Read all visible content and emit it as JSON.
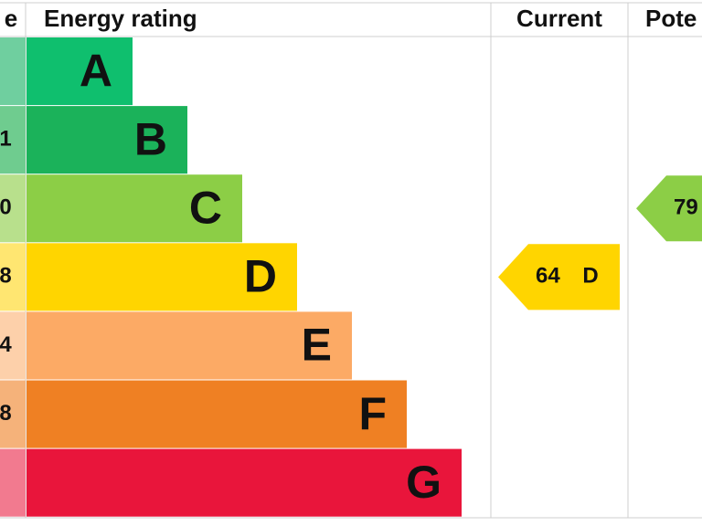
{
  "header": {
    "score": "e",
    "rating": "Energy rating",
    "current": "Current",
    "potential": "Pote"
  },
  "bands": [
    {
      "letter": "A",
      "color": "#0fbf6e",
      "score_color": "#6fcf9f"
    },
    {
      "letter": "B",
      "score": "1",
      "color": "#1bb25a",
      "score_color": "#6fcc8f"
    },
    {
      "letter": "C",
      "score": "0",
      "color": "#8cce46",
      "score_color": "#b8e08c"
    },
    {
      "letter": "D",
      "score": "8",
      "color": "#ffd500",
      "score_color": "#ffe671"
    },
    {
      "letter": "E",
      "score": "4",
      "color": "#fcaa65",
      "score_color": "#fdd0aa"
    },
    {
      "letter": "F",
      "score": "8",
      "color": "#ef8023",
      "score_color": "#f5b27a"
    },
    {
      "letter": "G",
      "color": "#e9153b",
      "score_color": "#f27a8f"
    }
  ],
  "current": {
    "value": 64,
    "letter": "D",
    "color": "#ffd500",
    "band": 3
  },
  "potential": {
    "value": 79,
    "color": "#8cce46",
    "band": 2
  }
}
